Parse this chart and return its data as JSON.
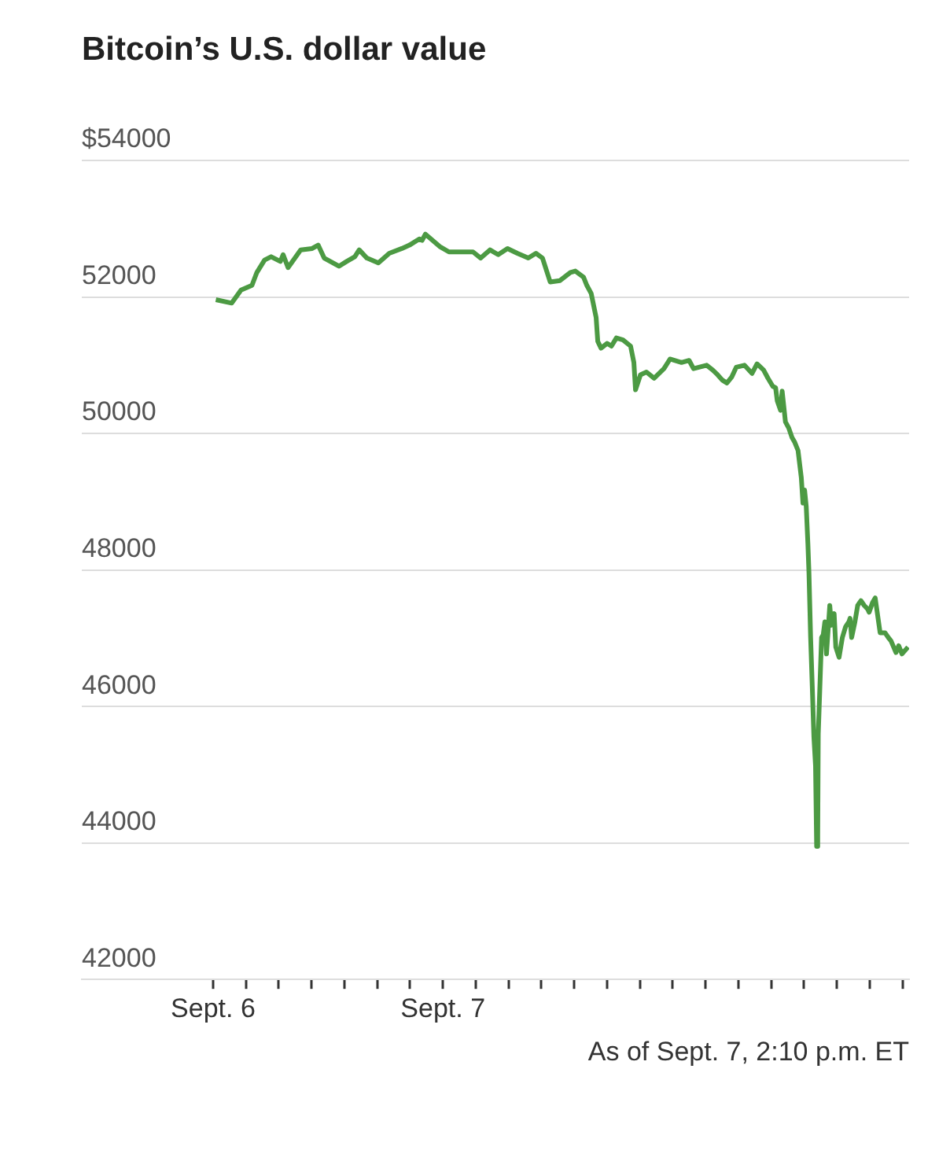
{
  "chart_data": {
    "type": "line",
    "title": "Bitcoin’s U.S. dollar value",
    "annotations": [
      "As of Sept. 7, 2:10 p.m. ET"
    ],
    "xlim": [
      "--09-06T13:00",
      "--09-07T14:12"
    ],
    "xticks": [
      {
        "value": "--09-06T17:00",
        "label": "Sept. 6"
      },
      {
        "value": "--09-06T18:00",
        "label": null
      },
      {
        "value": "--09-06T19:00",
        "label": null
      },
      {
        "value": "--09-06T20:00",
        "label": null
      },
      {
        "value": "--09-06T21:00",
        "label": null
      },
      {
        "value": "--09-06T22:00",
        "label": null
      },
      {
        "value": "--09-06T23:00",
        "label": null
      },
      {
        "value": "--09-07T00:00",
        "label": "Sept. 7"
      },
      {
        "value": "--09-07T01:00",
        "label": null
      },
      {
        "value": "--09-07T02:00",
        "label": null
      },
      {
        "value": "--09-07T03:00",
        "label": null
      },
      {
        "value": "--09-07T04:00",
        "label": null
      },
      {
        "value": "--09-07T05:00",
        "label": null
      },
      {
        "value": "--09-07T06:00",
        "label": null
      },
      {
        "value": "--09-07T07:00",
        "label": null
      },
      {
        "value": "--09-07T08:00",
        "label": null
      },
      {
        "value": "--09-07T09:00",
        "label": null
      },
      {
        "value": "--09-07T10:00",
        "label": null
      },
      {
        "value": "--09-07T11:00",
        "label": null
      },
      {
        "value": "--09-07T12:00",
        "label": null
      },
      {
        "value": "--09-07T13:00",
        "label": null
      },
      {
        "value": "--09-07T14:00",
        "label": null
      }
    ],
    "ylim": [
      42000,
      54000
    ],
    "yticks": [
      42000,
      44000,
      46000,
      48000,
      50000,
      52000,
      {
        "value": 54000,
        "label": "$54000"
      }
    ],
    "grid": "y",
    "marker": "none",
    "line_style": "solid",
    "series": [
      {
        "color": "#4c9a43",
        "x": [
          "--09-06T17:05",
          "--09-06T17:34",
          "--09-06T17:51",
          "--09-06T18:11",
          "--09-06T18:20",
          "--09-06T18:34",
          "--09-06T18:46",
          "--09-06T19:03",
          "--09-06T19:08",
          "--09-06T19:17",
          "--09-06T19:40",
          "--09-06T20:01",
          "--09-06T20:12",
          "--09-06T20:23",
          "--09-06T20:50",
          "--09-06T21:04",
          "--09-06T21:19",
          "--09-06T21:27",
          "--09-06T21:41",
          "--09-06T22:02",
          "--09-06T22:22",
          "--09-06T22:45",
          "--09-06T22:59",
          "--09-06T23:17",
          "--09-06T23:22",
          "--09-06T23:28",
          "--09-06T23:54",
          "--09-07T00:11",
          "--09-07T00:32",
          "--09-07T00:55",
          "--09-07T01:09",
          "--09-07T01:26",
          "--09-07T01:41",
          "--09-07T01:58",
          "--09-07T02:16",
          "--09-07T02:36",
          "--09-07T02:50",
          "--09-07T03:02",
          "--09-07T03:16",
          "--09-07T03:34",
          "--09-07T03:53",
          "--09-07T04:02",
          "--09-07T04:17",
          "--09-07T04:23",
          "--09-07T04:31",
          "--09-07T04:40",
          "--09-07T04:43",
          "--09-07T04:49",
          "--09-07T05:00",
          "--09-07T05:08",
          "--09-07T05:17",
          "--09-07T05:29",
          "--09-07T05:43",
          "--09-07T05:49",
          "--09-07T05:52",
          "--09-07T06:01",
          "--09-07T06:12",
          "--09-07T06:26",
          "--09-07T06:44",
          "--09-07T06:55",
          "--09-07T07:16",
          "--09-07T07:30",
          "--09-07T07:38",
          "--09-07T08:02",
          "--09-07T08:13",
          "--09-07T08:22",
          "--09-07T08:31",
          "--09-07T08:39",
          "--09-07T08:48",
          "--09-07T08:56",
          "--09-07T09:11",
          "--09-07T09:25",
          "--09-07T09:34",
          "--09-07T09:46",
          "--09-07T09:54",
          "--09-07T10:03",
          "--09-07T10:08",
          "--09-07T10:11",
          "--09-07T10:17",
          "--09-07T10:20",
          "--09-07T10:26",
          "--09-07T10:32",
          "--09-07T10:38",
          "--09-07T10:43",
          "--09-07T10:49",
          "--09-07T10:55",
          "--09-07T10:58",
          "--09-07T11:01",
          "--09-07T11:04",
          "--09-07T11:07",
          "--09-07T11:09",
          "--09-07T11:12",
          "--09-07T11:15",
          "--09-07T11:18",
          "--09-07T11:21",
          "--09-07T11:23",
          "--09-07T11:25",
          "--09-07T11:26",
          "--09-07T11:32",
          "--09-07T11:35",
          "--09-07T11:38",
          "--09-07T11:41",
          "--09-07T11:44",
          "--09-07T11:47",
          "--09-07T11:50",
          "--09-07T11:55",
          "--09-07T11:58",
          "--09-07T12:04",
          "--09-07T12:10",
          "--09-07T12:16",
          "--09-07T12:22",
          "--09-07T12:24",
          "--09-07T12:27",
          "--09-07T12:33",
          "--09-07T12:38",
          "--09-07T12:44",
          "--09-07T12:50",
          "--09-07T12:56",
          "--09-07T12:59",
          "--09-07T13:02",
          "--09-07T13:05",
          "--09-07T13:10",
          "--09-07T13:19",
          "--09-07T13:28",
          "--09-07T13:34",
          "--09-07T13:39",
          "--09-07T13:48",
          "--09-07T13:53",
          "--09-07T13:59",
          "--09-07T14:10"
        ],
        "values": [
          51960,
          51910,
          52100,
          52170,
          52360,
          52540,
          52590,
          52520,
          52620,
          52430,
          52690,
          52710,
          52760,
          52570,
          52450,
          52520,
          52590,
          52690,
          52570,
          52500,
          52640,
          52710,
          52760,
          52850,
          52830,
          52920,
          52740,
          52660,
          52660,
          52660,
          52570,
          52690,
          52620,
          52710,
          52640,
          52570,
          52640,
          52570,
          52220,
          52240,
          52360,
          52380,
          52290,
          52170,
          52050,
          51700,
          51350,
          51250,
          51320,
          51280,
          51400,
          51370,
          51280,
          51040,
          50640,
          50860,
          50900,
          50810,
          50950,
          51090,
          51040,
          51070,
          50950,
          51000,
          50930,
          50860,
          50780,
          50740,
          50830,
          50970,
          51000,
          50880,
          51020,
          50930,
          50810,
          50690,
          50670,
          50480,
          50340,
          50620,
          50170,
          50080,
          49940,
          49870,
          49750,
          49350,
          48980,
          49170,
          48930,
          48390,
          47950,
          47010,
          46300,
          45550,
          45130,
          43950,
          44100,
          45600,
          47010,
          47050,
          47240,
          46770,
          47120,
          47480,
          47190,
          47360,
          46870,
          46720,
          47010,
          47170,
          47240,
          47290,
          47010,
          47240,
          47480,
          47550,
          47480,
          47430,
          47380,
          47450,
          47520,
          47590,
          47080,
          47080,
          47010,
          46960,
          46790,
          46890,
          46770,
          46870
        ]
      }
    ]
  }
}
